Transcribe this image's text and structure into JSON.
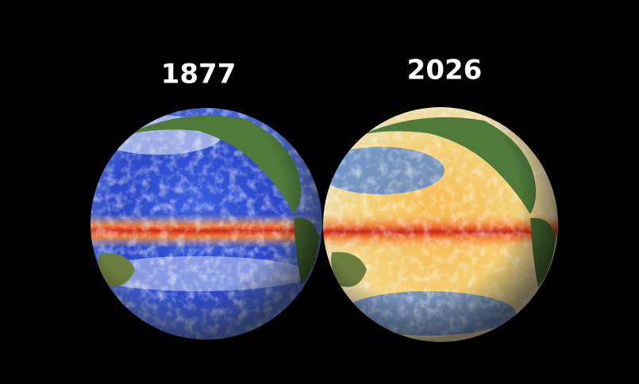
{
  "globes": [
    {
      "label": "1877"
    },
    {
      "label": "2026"
    }
  ]
}
